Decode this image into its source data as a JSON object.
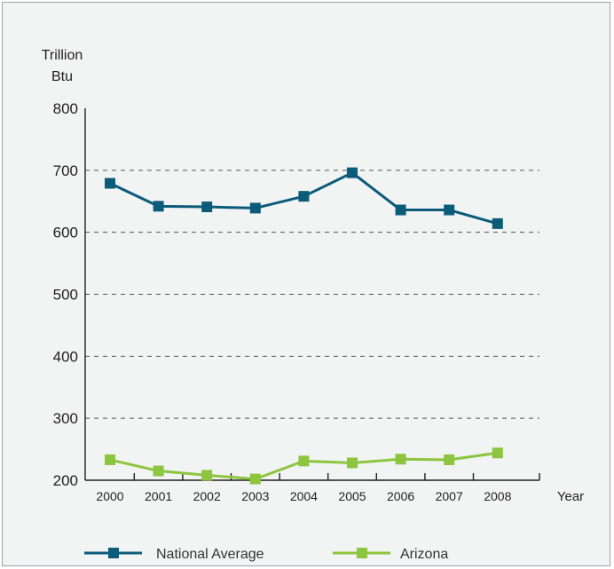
{
  "chart_data": {
    "type": "line",
    "ylabel": [
      "Trillion",
      "Btu"
    ],
    "xlabel": "Year",
    "ylim": [
      200,
      800
    ],
    "yticks": [
      "200",
      "300",
      "400",
      "500",
      "600",
      "700",
      "800"
    ],
    "grid": "horizontal dashed",
    "legend_position": "bottom",
    "x": [
      "2000",
      "2001",
      "2002",
      "2003",
      "2004",
      "2005",
      "2006",
      "2007",
      "2008"
    ],
    "series": [
      {
        "name": "National Average",
        "color": "#0b5c7a",
        "marker": "square",
        "values": [
          679,
          642,
          641,
          639,
          658,
          696,
          636,
          636,
          614
        ]
      },
      {
        "name": "Arizona",
        "color": "#8cc63e",
        "marker": "square",
        "values": [
          233,
          215,
          208,
          202,
          231,
          228,
          234,
          233,
          244
        ]
      }
    ]
  }
}
